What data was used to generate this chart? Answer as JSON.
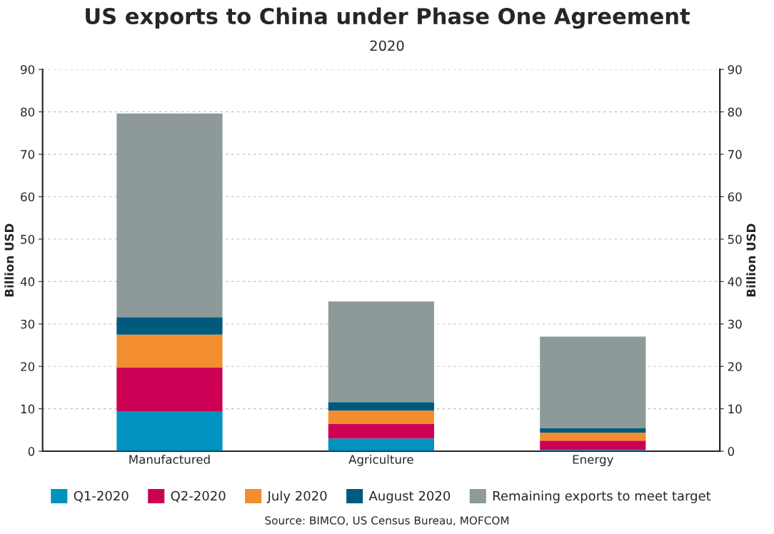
{
  "chart_data": {
    "type": "bar",
    "title": "US exports to China under Phase One Agreement",
    "subtitle": "2020",
    "ylabel": "Billion USD",
    "y2label": "Billion USD",
    "categories": [
      "Manufactured",
      "Agriculture",
      "Energy"
    ],
    "stacked": true,
    "series": [
      {
        "name": "Q1-2020",
        "color": "#0093c0",
        "values": [
          9.3,
          3.0,
          0.3
        ]
      },
      {
        "name": "Q2-2020",
        "color": "#cc0055",
        "values": [
          10.5,
          3.4,
          2.2
        ]
      },
      {
        "name": "July 2020",
        "color": "#f28e2f",
        "values": [
          7.7,
          3.2,
          1.9
        ]
      },
      {
        "name": "August 2020",
        "color": "#005a7d",
        "values": [
          4.1,
          2.0,
          1.0
        ]
      },
      {
        "name": "Remaining exports to meet target",
        "color": "#8e9a9a",
        "values": [
          48.0,
          23.7,
          21.6
        ]
      }
    ],
    "ylim": [
      0,
      90
    ],
    "yticks": [
      0,
      10,
      20,
      30,
      40,
      50,
      60,
      70,
      80,
      90
    ],
    "y2lim": [
      0,
      90
    ],
    "y2ticks": [
      0,
      10,
      20,
      30,
      40,
      50,
      60,
      70,
      80,
      90
    ],
    "grid": "y",
    "legend": "bottom",
    "annotations": [
      "Source: BIMCO, US Census Bureau, MOFCOM"
    ]
  }
}
